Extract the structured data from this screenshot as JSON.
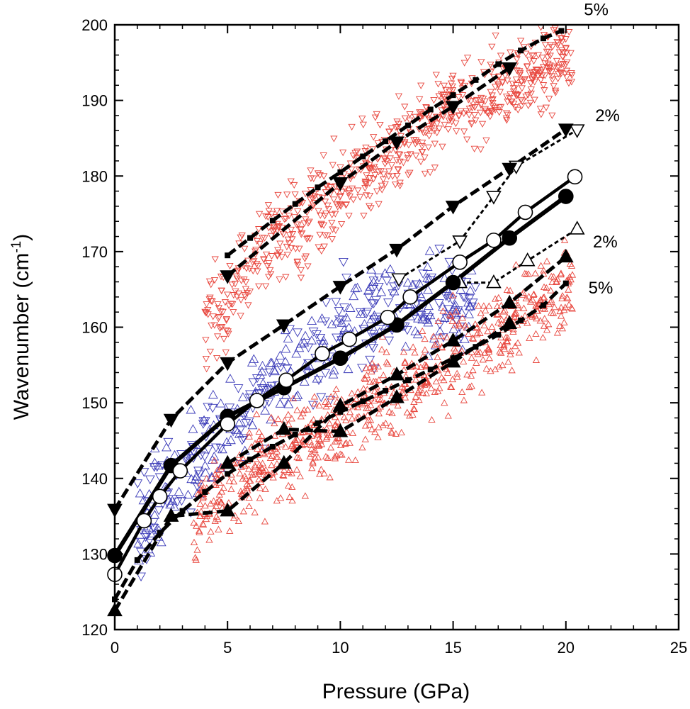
{
  "chart_data": {
    "type": "scatter",
    "title": "",
    "xlabel": "Pressure (GPa)",
    "ylabel_main": "Wavenumber (cm",
    "ylabel_sup": "-1",
    "ylabel_close": ")",
    "xlim": [
      0,
      25
    ],
    "ylim": [
      120,
      200
    ],
    "xticks": [
      0,
      5,
      10,
      15,
      20,
      25
    ],
    "yticks": [
      120,
      130,
      140,
      150,
      160,
      170,
      180,
      190,
      200
    ],
    "grid": false,
    "colors": {
      "black": "#000000",
      "red": "#e8453c",
      "blue": "#3a3ab8"
    },
    "annotations": [
      {
        "text": "5%",
        "x": 20.8,
        "y": 202.0
      },
      {
        "text": "2%",
        "x": 21.3,
        "y": 188.0
      },
      {
        "text": "2%",
        "x": 21.2,
        "y": 171.3
      },
      {
        "text": "5%",
        "x": 21.0,
        "y": 165.2
      }
    ],
    "series": [
      {
        "name": "lower branch 5% (filled up-triangles)",
        "marker": "triangle-up",
        "fill": "black",
        "line": "dashed",
        "x": [
          0,
          2.5,
          5,
          7.5,
          10,
          12.5,
          15,
          17.5,
          20
        ],
        "y": [
          122.5,
          135,
          135.7,
          142,
          149.6,
          153.7,
          158.2,
          163.2,
          169.3
        ]
      },
      {
        "name": "lower branch 5% (filled up-triangles, shifted)",
        "marker": "triangle-up",
        "fill": "black",
        "line": "dashed",
        "x": [
          5,
          7.5,
          10,
          12.5,
          15,
          17.5
        ],
        "y": [
          142,
          146.5,
          146.2,
          150.7,
          155.4,
          160.5
        ]
      },
      {
        "name": "lower branch 2% (open up-triangles)",
        "marker": "triangle-up",
        "fill": "white",
        "line": "dotted",
        "x": [
          15.3,
          16.8,
          18.3,
          20.5
        ],
        "y": [
          165.9,
          165.9,
          168.8,
          173.0
        ]
      },
      {
        "name": "center (filled circles)",
        "marker": "circle",
        "fill": "black",
        "line": "solid",
        "x": [
          0,
          2.5,
          5,
          7.5,
          10,
          12.5,
          15,
          17.5,
          20
        ],
        "y": [
          129.8,
          141.7,
          148.2,
          152.0,
          155.9,
          160.3,
          165.9,
          171.8,
          177.3
        ]
      },
      {
        "name": "center (open circles)",
        "marker": "circle",
        "fill": "white",
        "line": "solid",
        "x": [
          0,
          1.3,
          2.0,
          2.9,
          5.0,
          6.3,
          7.6,
          9.2,
          10.4,
          12.1,
          13.1,
          15.3,
          16.8,
          18.2,
          20.4
        ],
        "y": [
          127.3,
          134.4,
          137.6,
          141.0,
          147.2,
          150.3,
          153.0,
          156.5,
          158.4,
          161.3,
          164.0,
          168.6,
          171.5,
          175.2,
          179.9
        ]
      },
      {
        "name": "upper branch 2% (open down-triangles)",
        "marker": "triangle-down",
        "fill": "white",
        "line": "dotted",
        "x": [
          12.6,
          15.3,
          16.8,
          17.8,
          20.5
        ],
        "y": [
          166.4,
          171.4,
          177.3,
          181.3,
          186.1
        ]
      },
      {
        "name": "upper branch 2% (filled down-triangles)",
        "marker": "triangle-down",
        "fill": "black",
        "line": "dashed",
        "x": [
          0,
          2.5,
          5,
          7.5,
          10,
          12.5,
          15,
          17.5,
          20
        ],
        "y": [
          135.9,
          147.8,
          155.3,
          160.3,
          165.4,
          170.3,
          176.0,
          181.0,
          186.2
        ]
      },
      {
        "name": "upper branch 5% (filled down-triangles)",
        "marker": "triangle-down",
        "fill": "black",
        "line": "dashed",
        "x": [
          5,
          10,
          12.5,
          15,
          17.5
        ],
        "y": [
          166.8,
          179.1,
          184.5,
          189.2,
          194.3
        ]
      },
      {
        "name": "dashed boundary upper 5%",
        "marker": "square",
        "fill": "black",
        "line": "dashed",
        "x": [
          5,
          6,
          7,
          8,
          9,
          10,
          11,
          12,
          13,
          14,
          15,
          16,
          17,
          18,
          19,
          19.8
        ],
        "y": [
          169.5,
          171.8,
          174.1,
          176.3,
          178.5,
          180.5,
          182.6,
          184.6,
          186.7,
          188.8,
          190.7,
          192.7,
          194.8,
          196.6,
          198.2,
          199.2
        ]
      },
      {
        "name": "dashed boundary lower 5%",
        "marker": "square",
        "fill": "black",
        "line": "dashed",
        "x": [
          0,
          1,
          2,
          3,
          4,
          5,
          6,
          7,
          8,
          9,
          10,
          11,
          12,
          13,
          14,
          15,
          16,
          17,
          18,
          19,
          20
        ],
        "y": [
          124.0,
          129.2,
          132.8,
          135.7,
          138.2,
          140.6,
          142.5,
          144.2,
          145.8,
          147.3,
          148.8,
          150.2,
          151.6,
          153.0,
          154.4,
          155.9,
          157.4,
          159.0,
          160.9,
          162.9,
          165.8
        ]
      },
      {
        "name": "Raman data, upper branch (red open down-triangles)",
        "marker": "triangle-down-small",
        "color": "red",
        "scatter_cloud": true,
        "x": [
          4.0,
          5.0,
          6.0,
          7.0,
          8.0,
          9.0,
          10.0,
          11.0,
          12.0,
          13.0,
          14.0,
          15.0,
          16.0,
          17.0,
          18.0,
          19.0,
          20.3
        ],
        "y": [
          160.5,
          163.5,
          167.5,
          171.0,
          172.5,
          175.5,
          178.0,
          180.5,
          182.0,
          184.5,
          187.0,
          189.0,
          190.5,
          192.0,
          193.5,
          195.0,
          196.5
        ]
      },
      {
        "name": "Raman data, middle (blue open triangles)",
        "marker": "mixed-triangles-small",
        "color": "blue",
        "scatter_cloud": true,
        "x": [
          1.0,
          2.0,
          3.0,
          4.0,
          5.0,
          6.0,
          7.0,
          8.0,
          9.0,
          10.0,
          11.0,
          12.0,
          13.0,
          14.0,
          15.0,
          16.0
        ],
        "y": [
          134.0,
          138.0,
          141.0,
          144.5,
          147.0,
          149.5,
          152.0,
          154.5,
          157.0,
          159.0,
          161.0,
          162.5,
          164.0,
          164.0,
          163.5,
          162.5
        ]
      },
      {
        "name": "Raman data, lower branch (red open up-triangles)",
        "marker": "triangle-up-small",
        "color": "red",
        "scatter_cloud": true,
        "x": [
          3.5,
          4.5,
          5.5,
          6.5,
          7.5,
          8.5,
          9.5,
          10.5,
          11.5,
          12.5,
          13.5,
          14.5,
          15.5,
          16.5,
          17.5,
          18.5,
          19.5,
          20.3
        ],
        "y": [
          134.5,
          137.0,
          139.5,
          141.5,
          143.5,
          145.0,
          146.5,
          148.5,
          150.0,
          151.5,
          153.5,
          155.0,
          157.0,
          158.5,
          160.5,
          162.5,
          164.0,
          165.5
        ]
      }
    ]
  }
}
